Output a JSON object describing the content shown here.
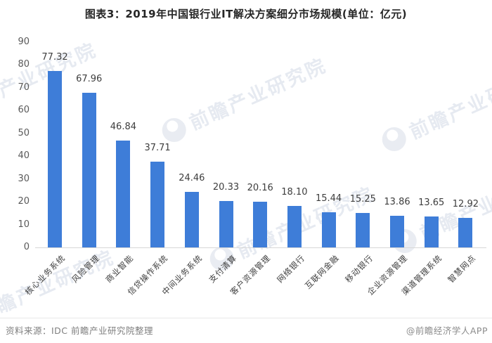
{
  "chart_data": {
    "type": "bar",
    "title": "图表3：2019年中国银行业IT解决方案细分市场规模(单位：亿元)",
    "categories": [
      "核心业务系统",
      "风险管理",
      "商业智能",
      "信贷操作系统",
      "中间业务系统",
      "支付清算",
      "客户资源管理",
      "网络银行",
      "互联网金融",
      "移动银行",
      "企业资源管理",
      "渠道管理系统",
      "智慧网点"
    ],
    "values": [
      77.32,
      67.96,
      46.84,
      37.71,
      24.46,
      20.33,
      20.16,
      18.1,
      15.44,
      15.25,
      13.86,
      13.65,
      12.92
    ],
    "value_labels": [
      "77.32",
      "67.96",
      "46.84",
      "37.71",
      "24.46",
      "20.33",
      "20.16",
      "18.10",
      "15.44",
      "15.25",
      "13.86",
      "13.65",
      "12.92"
    ],
    "xlabel": "",
    "ylabel": "",
    "ylim": [
      0,
      90
    ],
    "ytick_step": 10,
    "grid": false,
    "legend": false,
    "bar_color": "#3e7dd8",
    "unit": "亿元"
  },
  "watermark": {
    "text": "前瞻产业研究院"
  },
  "footer": {
    "source": "资料来源：IDC 前瞻产业研究院整理",
    "credit": "@前瞻经济学人APP"
  },
  "colors": {
    "axis_text": "#595959",
    "value_text": "#3d3d3d",
    "category_text": "#3f3f3f",
    "footer_text": "#7f7f7f"
  }
}
